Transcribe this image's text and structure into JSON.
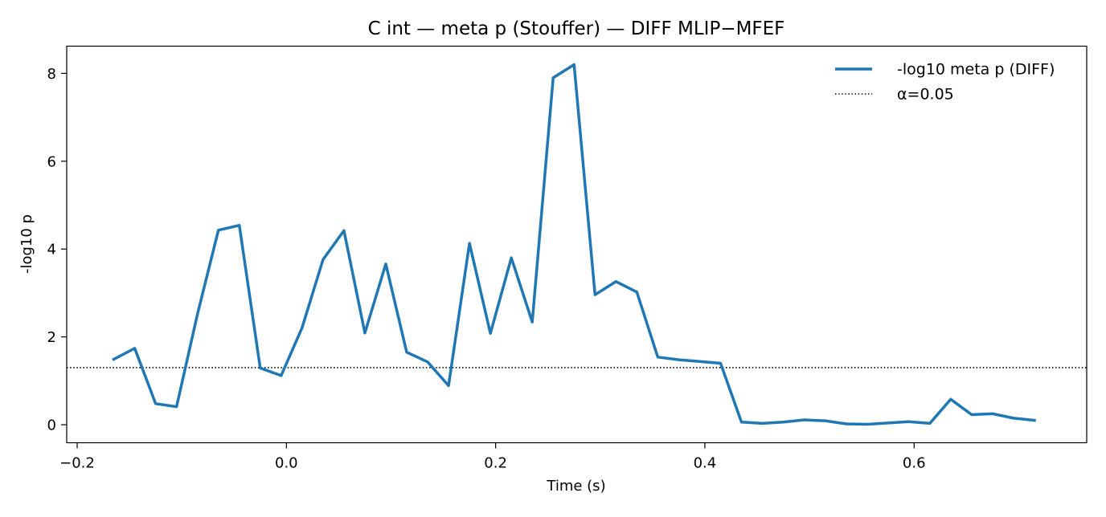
{
  "chart_data": {
    "type": "line",
    "title": "C int — meta p (Stouffer) — DIFF MLIP−MFEF",
    "xlabel": "Time (s)",
    "ylabel": "-log10 p",
    "xlim": [
      -0.21,
      0.765
    ],
    "ylim": [
      -0.41,
      8.62
    ],
    "xticks": [
      -0.2,
      0.0,
      0.2,
      0.4,
      0.6
    ],
    "xtick_labels": [
      "−0.2",
      "0.0",
      "0.2",
      "0.4",
      "0.6"
    ],
    "yticks": [
      0,
      2,
      4,
      6,
      8
    ],
    "ytick_labels": [
      "0",
      "2",
      "4",
      "6",
      "8"
    ],
    "grid": false,
    "legend_position": "upper right",
    "series": [
      {
        "name": "-log10 meta p (DIFF)",
        "color": "#1f77b4",
        "style": "solid",
        "x": [
          -0.165,
          -0.145,
          -0.125,
          -0.105,
          -0.085,
          -0.065,
          -0.045,
          -0.025,
          -0.005,
          0.015,
          0.035,
          0.055,
          0.075,
          0.095,
          0.115,
          0.135,
          0.155,
          0.175,
          0.195,
          0.215,
          0.235,
          0.255,
          0.275,
          0.295,
          0.315,
          0.335,
          0.355,
          0.375,
          0.395,
          0.415,
          0.435,
          0.455,
          0.475,
          0.495,
          0.515,
          0.535,
          0.555,
          0.575,
          0.595,
          0.615,
          0.635,
          0.655,
          0.675,
          0.695,
          0.715
        ],
        "values": [
          1.49,
          1.74,
          0.48,
          0.41,
          2.52,
          4.43,
          4.54,
          1.29,
          1.12,
          2.21,
          3.76,
          4.42,
          2.09,
          3.66,
          1.65,
          1.43,
          0.89,
          4.13,
          2.08,
          3.8,
          2.34,
          7.9,
          8.2,
          2.96,
          3.26,
          3.02,
          1.54,
          1.48,
          1.44,
          1.4,
          0.06,
          0.03,
          0.06,
          0.11,
          0.09,
          0.02,
          0.01,
          0.04,
          0.07,
          0.03,
          0.58,
          0.23,
          0.25,
          0.15,
          0.1
        ]
      },
      {
        "name": "α=0.05",
        "color": "#000000",
        "style": "dotted",
        "hline": 1.301
      }
    ]
  }
}
